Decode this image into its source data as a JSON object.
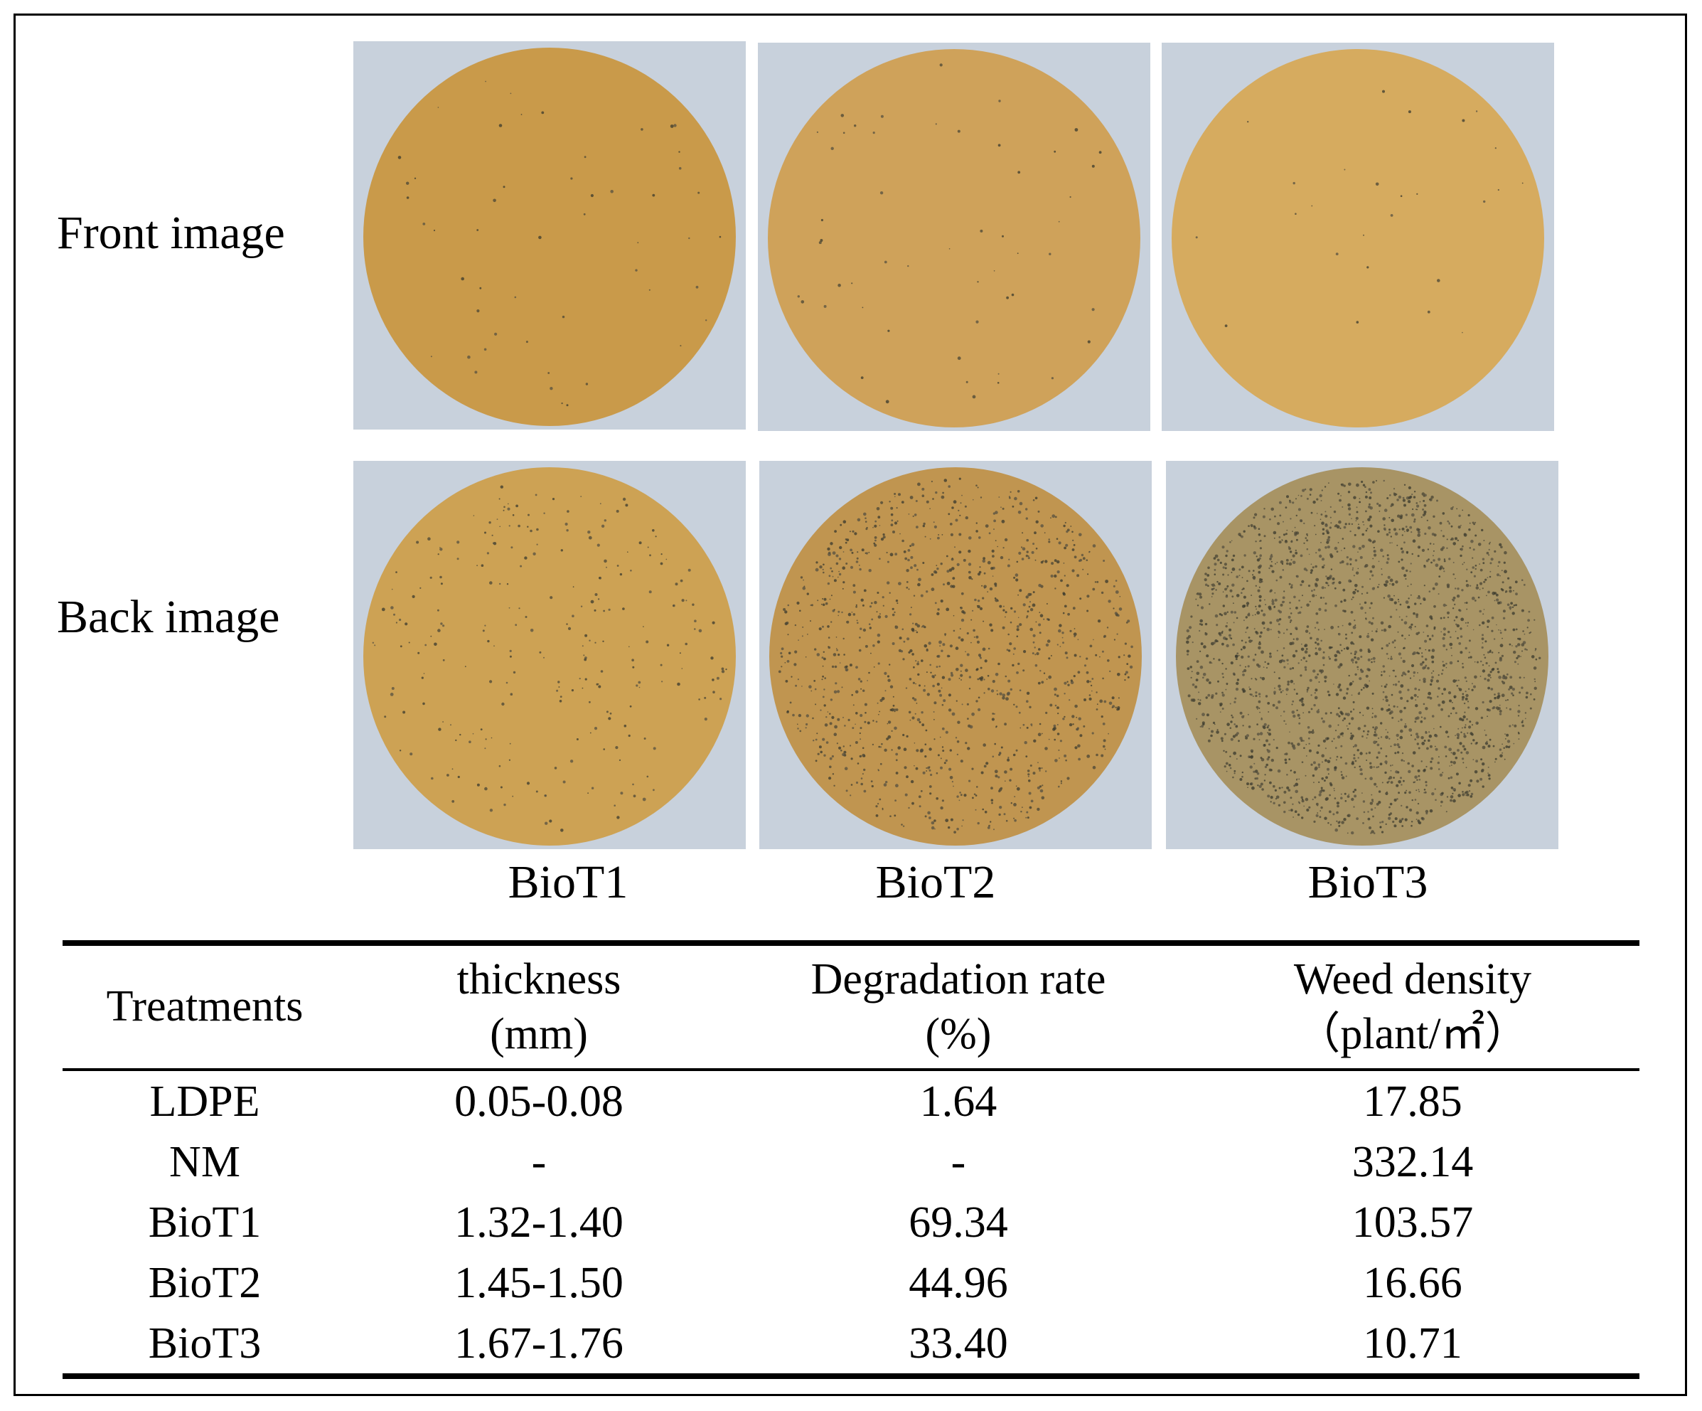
{
  "figure": {
    "row_labels": [
      "Front image",
      "Back image"
    ],
    "samples": [
      "BioT1",
      "BioT2",
      "BioT3"
    ],
    "swatches": {
      "background": "#c8d1dc",
      "disc_front": [
        "#c99a4a",
        "#cfa25a",
        "#d6ab5f"
      ],
      "disc_back": [
        "#cda254",
        "#c09550",
        "#a89465"
      ],
      "speckle": [
        "#3a3a2e",
        "#4a4636",
        "#555040"
      ]
    }
  },
  "table": {
    "headers": [
      {
        "line1": "Treatments",
        "line2": ""
      },
      {
        "line1": "thickness",
        "line2": "(mm)"
      },
      {
        "line1": "Degradation rate",
        "line2": "(%)"
      },
      {
        "line1": "Weed density",
        "line2": "（plant/㎡）"
      }
    ],
    "rows": [
      [
        "LDPE",
        "0.05-0.08",
        "1.64",
        "17.85"
      ],
      [
        "NM",
        "-",
        "-",
        "332.14"
      ],
      [
        "BioT1",
        "1.32-1.40",
        "69.34",
        "103.57"
      ],
      [
        "BioT2",
        "1.45-1.50",
        "44.96",
        "16.66"
      ],
      [
        "BioT3",
        "1.67-1.76",
        "33.40",
        "10.71"
      ]
    ]
  }
}
